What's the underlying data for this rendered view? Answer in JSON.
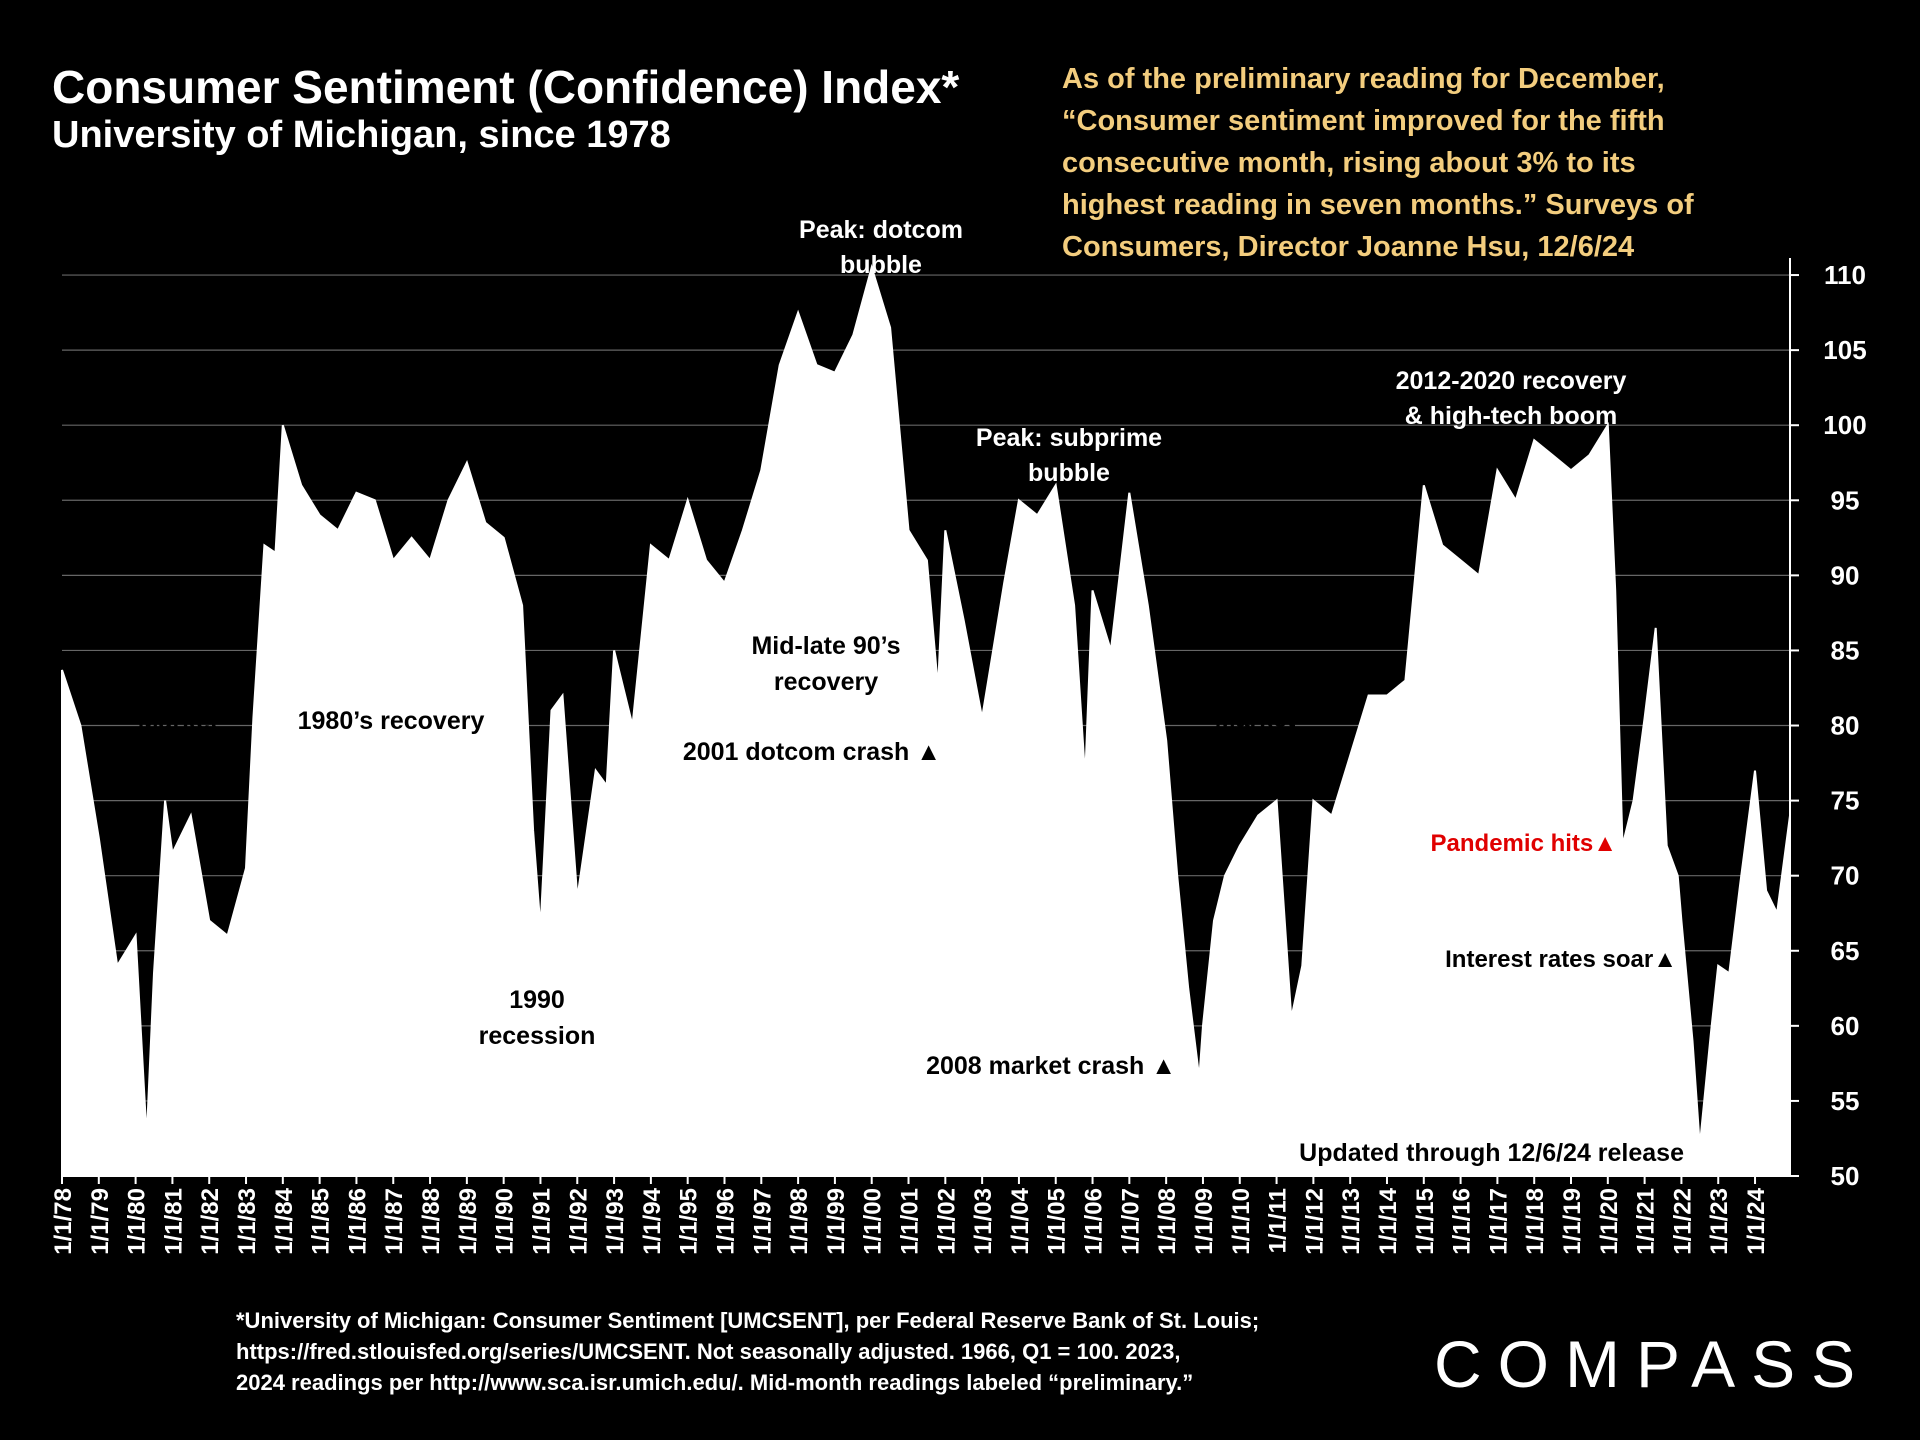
{
  "header": {
    "title": "Consumer Sentiment (Confidence) Index*",
    "subtitle": "University of Michigan, since 1978"
  },
  "quote": {
    "lines": [
      "As of the preliminary reading for December,",
      "“Consumer sentiment improved for the fifth",
      "consecutive month, rising about 3% to its",
      "highest reading in seven months.” Surveys of",
      "Consumers, Director Joanne Hsu, 12/6/24"
    ]
  },
  "footnote": {
    "lines": [
      "*University of Michigan: Consumer Sentiment [UMCSENT], per Federal Reserve Bank of St. Louis;",
      "https://fred.stlouisfed.org/series/UMCSENT. Not seasonally adjusted. 1966, Q1 = 100. 2023,",
      "2024 readings per http://www.sca.isr.umich.edu/. Mid-month readings labeled “preliminary.”"
    ]
  },
  "logo": {
    "text": "COMPASS"
  },
  "colors": {
    "background": "#000000",
    "fill": "#ffffff",
    "quote": "#f3cd7e",
    "pandemic": "#e00000",
    "grid": "#666666"
  },
  "chart_data": {
    "type": "area",
    "title": "Consumer Sentiment (Confidence) Index*",
    "xlabel": "",
    "ylabel": "",
    "ylim": [
      50,
      113
    ],
    "y_ticks": [
      50,
      55,
      60,
      65,
      70,
      75,
      80,
      85,
      90,
      95,
      100,
      105,
      110
    ],
    "y_axis_side": "right",
    "grid": true,
    "x_ticks": [
      "1/1/78",
      "1/1/79",
      "1/1/80",
      "1/1/81",
      "1/1/82",
      "1/1/83",
      "1/1/84",
      "1/1/85",
      "1/1/86",
      "1/1/87",
      "1/1/88",
      "1/1/89",
      "1/1/90",
      "1/1/91",
      "1/1/92",
      "1/1/93",
      "1/1/94",
      "1/1/95",
      "1/1/96",
      "1/1/97",
      "1/1/98",
      "1/1/99",
      "1/1/00",
      "1/1/01",
      "1/1/02",
      "1/1/03",
      "1/1/04",
      "1/1/05",
      "1/1/06",
      "1/1/07",
      "1/1/08",
      "1/1/09",
      "1/1/10",
      "1/1/11",
      "1/1/12",
      "1/1/13",
      "1/1/14",
      "1/1/15",
      "1/1/16",
      "1/1/17",
      "1/1/18",
      "1/1/19",
      "1/1/20",
      "1/1/21",
      "1/1/22",
      "1/1/23",
      "1/1/24"
    ],
    "series": [
      {
        "name": "",
        "x": [
          1978.0,
          1978.5,
          1979.0,
          1979.5,
          1980.0,
          1980.3,
          1980.5,
          1980.8,
          1981.0,
          1981.5,
          1982.0,
          1982.5,
          1983.0,
          1983.2,
          1983.5,
          1983.8,
          1984.0,
          1984.5,
          1985.0,
          1985.5,
          1986.0,
          1986.5,
          1987.0,
          1987.5,
          1988.0,
          1988.5,
          1989.0,
          1989.5,
          1990.0,
          1990.5,
          1990.8,
          1991.0,
          1991.3,
          1991.6,
          1992.0,
          1992.5,
          1992.8,
          1993.0,
          1993.5,
          1994.0,
          1994.5,
          1995.0,
          1995.5,
          1996.0,
          1996.5,
          1997.0,
          1997.5,
          1998.0,
          1998.5,
          1999.0,
          1999.5,
          2000.0,
          2000.5,
          2001.0,
          2001.5,
          2001.8,
          2002.0,
          2002.5,
          2003.0,
          2003.3,
          2003.6,
          2004.0,
          2004.5,
          2005.0,
          2005.5,
          2005.8,
          2006.0,
          2006.5,
          2007.0,
          2007.5,
          2008.0,
          2008.3,
          2008.6,
          2008.9,
          2009.0,
          2009.3,
          2009.6,
          2010.0,
          2010.5,
          2011.0,
          2011.4,
          2011.7,
          2012.0,
          2012.5,
          2013.0,
          2013.5,
          2014.0,
          2014.5,
          2015.0,
          2015.5,
          2016.0,
          2016.5,
          2017.0,
          2017.5,
          2018.0,
          2018.5,
          2019.0,
          2019.5,
          2020.0,
          2020.2,
          2020.4,
          2020.7,
          2021.0,
          2021.3,
          2021.6,
          2021.9,
          2022.0,
          2022.3,
          2022.5,
          2022.8,
          2023.0,
          2023.3,
          2023.6,
          2024.0,
          2024.3,
          2024.6,
          2024.95
        ],
        "values": [
          83.7,
          80.0,
          72.5,
          64.0,
          66.0,
          52.5,
          63.5,
          75.0,
          71.5,
          74.0,
          67.0,
          66.0,
          70.5,
          80.5,
          92.0,
          91.5,
          100.0,
          96.0,
          94.0,
          93.0,
          95.5,
          95.0,
          91.0,
          92.5,
          91.0,
          95.0,
          97.5,
          93.5,
          92.5,
          88.0,
          73.0,
          66.5,
          81.0,
          82.0,
          68.5,
          77.0,
          76.0,
          85.0,
          80.0,
          92.0,
          91.0,
          95.0,
          91.0,
          89.5,
          93.0,
          97.0,
          104.0,
          107.5,
          104.0,
          103.5,
          106.0,
          110.5,
          106.5,
          93.0,
          91.0,
          82.5,
          93.0,
          87.0,
          80.5,
          85.0,
          89.5,
          95.0,
          94.0,
          96.0,
          88.0,
          76.5,
          89.0,
          85.0,
          95.5,
          88.0,
          79.0,
          70.0,
          62.5,
          56.5,
          60.0,
          67.0,
          70.0,
          72.0,
          74.0,
          75.0,
          60.5,
          64.0,
          75.0,
          74.0,
          78.0,
          82.0,
          82.0,
          83.0,
          96.0,
          92.0,
          91.0,
          90.0,
          97.0,
          95.0,
          99.0,
          98.0,
          97.0,
          98.0,
          100.0,
          89.0,
          72.0,
          75.0,
          80.5,
          86.5,
          72.0,
          70.0,
          67.0,
          59.0,
          52.0,
          59.5,
          64.0,
          63.5,
          69.5,
          77.0,
          69.0,
          67.5,
          74.0
        ]
      }
    ]
  },
  "annotations": {
    "market_recession_1": [
      "Market",
      "recession"
    ],
    "recovery_1980s": "1980’s recovery",
    "recession_1990": [
      "1990",
      "recession"
    ],
    "peak_dotcom": [
      "Peak: dotcom",
      "bubble"
    ],
    "recovery_90s": [
      "Mid-late 90’s",
      "recovery"
    ],
    "dotcom_crash": "2001 dotcom crash ▲",
    "peak_subprime": [
      "Peak: subprime",
      "bubble"
    ],
    "market_recession_2": [
      "Market",
      "recession"
    ],
    "crash_2008": "2008 market crash ▲",
    "recovery_2012": [
      "2012-2020 recovery",
      "& high-tech boom"
    ],
    "pandemic": "Pandemic hits▲",
    "interest_rates": "Interest rates soar▲",
    "updated": "Updated through 12/6/24 release"
  }
}
